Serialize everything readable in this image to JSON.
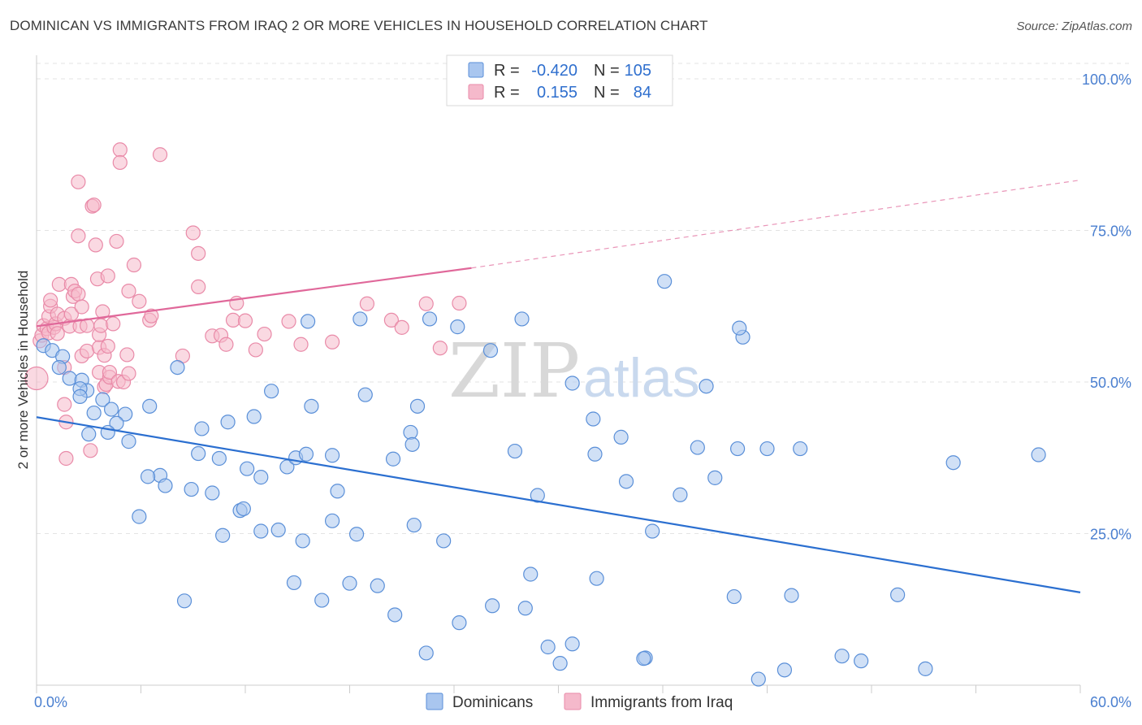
{
  "header": {
    "title": "DOMINICAN VS IMMIGRANTS FROM IRAQ 2 OR MORE VEHICLES IN HOUSEHOLD CORRELATION CHART",
    "source": "Source: ZipAtlas.com"
  },
  "watermark": {
    "zip": "ZIP",
    "atlas": "atlas"
  },
  "legend": {
    "r_label": "R =",
    "n_label": "N =",
    "rows": [
      {
        "r": "-0.420",
        "n": "105"
      },
      {
        "r": "0.155",
        "n": "84"
      }
    ]
  },
  "bottom_legend": [
    "Dominicans",
    "Immigrants from Iraq"
  ],
  "colors": {
    "blue_fill": "#a9c6ef",
    "blue_stroke": "#5a8fd8",
    "blue_line": "#2b6fd0",
    "pink_fill": "#f5b9cb",
    "pink_stroke": "#e98aa8",
    "pink_line": "#e0689a",
    "axis_text": "#4a7fd0"
  },
  "chart_data": {
    "type": "scatter",
    "xlabel": "",
    "ylabel": "2 or more Vehicles in Household",
    "xlim": [
      0,
      60
    ],
    "ylim": [
      0,
      100
    ],
    "x_tick_labels": [
      "0.0%",
      "60.0%"
    ],
    "y_ticks": [
      25,
      50,
      75,
      100
    ],
    "y_tick_labels": [
      "25.0%",
      "50.0%",
      "75.0%",
      "100.0%"
    ],
    "grid": true,
    "legend_position": "top-center",
    "series": [
      {
        "name": "Dominicans",
        "r": -0.42,
        "n": 105,
        "trend": {
          "x": [
            0,
            60
          ],
          "y": [
            44.2,
            15.3
          ]
        },
        "points": [
          [
            0.4,
            56.0
          ],
          [
            0.9,
            55.2
          ],
          [
            1.5,
            54.2
          ],
          [
            1.3,
            52.4
          ],
          [
            1.9,
            50.6
          ],
          [
            2.6,
            50.3
          ],
          [
            2.9,
            48.6
          ],
          [
            2.5,
            48.9
          ],
          [
            2.5,
            47.6
          ],
          [
            3.8,
            47.1
          ],
          [
            4.3,
            45.5
          ],
          [
            3.3,
            44.9
          ],
          [
            5.1,
            44.7
          ],
          [
            4.6,
            43.2
          ],
          [
            4.1,
            41.7
          ],
          [
            3.0,
            41.4
          ],
          [
            5.3,
            40.2
          ],
          [
            6.5,
            46.0
          ],
          [
            8.1,
            52.4
          ],
          [
            9.5,
            42.3
          ],
          [
            11.0,
            43.4
          ],
          [
            12.5,
            44.3
          ],
          [
            13.5,
            48.5
          ],
          [
            15.8,
            46.0
          ],
          [
            18.9,
            47.9
          ],
          [
            21.5,
            41.7
          ],
          [
            21.9,
            46.0
          ],
          [
            21.6,
            39.7
          ],
          [
            27.5,
            38.6
          ],
          [
            7.1,
            34.6
          ],
          [
            6.4,
            34.4
          ],
          [
            7.4,
            32.9
          ],
          [
            8.9,
            32.3
          ],
          [
            10.1,
            31.7
          ],
          [
            9.3,
            38.2
          ],
          [
            10.5,
            37.4
          ],
          [
            12.1,
            35.7
          ],
          [
            12.9,
            34.3
          ],
          [
            14.4,
            36.0
          ],
          [
            14.9,
            37.5
          ],
          [
            15.5,
            38.1
          ],
          [
            17.0,
            37.9
          ],
          [
            17.3,
            32.0
          ],
          [
            20.5,
            37.3
          ],
          [
            5.9,
            27.8
          ],
          [
            11.7,
            28.8
          ],
          [
            11.9,
            29.1
          ],
          [
            10.7,
            24.7
          ],
          [
            12.9,
            25.4
          ],
          [
            13.9,
            25.6
          ],
          [
            15.3,
            23.8
          ],
          [
            17.0,
            27.1
          ],
          [
            18.4,
            24.9
          ],
          [
            21.7,
            26.4
          ],
          [
            23.4,
            23.8
          ],
          [
            14.8,
            16.9
          ],
          [
            16.4,
            14.0
          ],
          [
            18.0,
            16.8
          ],
          [
            19.6,
            16.4
          ],
          [
            20.6,
            11.6
          ],
          [
            8.5,
            13.9
          ],
          [
            22.4,
            5.3
          ],
          [
            24.3,
            10.3
          ],
          [
            26.2,
            13.1
          ],
          [
            28.1,
            12.7
          ],
          [
            28.4,
            18.3
          ],
          [
            29.4,
            6.3
          ],
          [
            30.1,
            3.6
          ],
          [
            30.8,
            6.8
          ],
          [
            32.2,
            17.6
          ],
          [
            35.0,
            4.5
          ],
          [
            34.9,
            4.4
          ],
          [
            35.4,
            25.4
          ],
          [
            15.6,
            60.0
          ],
          [
            18.6,
            60.4
          ],
          [
            22.6,
            60.4
          ],
          [
            24.2,
            59.1
          ],
          [
            26.1,
            55.2
          ],
          [
            27.9,
            60.4
          ],
          [
            28.8,
            31.3
          ],
          [
            30.8,
            49.8
          ],
          [
            32.1,
            38.1
          ],
          [
            32.0,
            43.9
          ],
          [
            33.6,
            40.9
          ],
          [
            33.9,
            33.6
          ],
          [
            36.1,
            66.6
          ],
          [
            37.0,
            31.4
          ],
          [
            38.0,
            39.2
          ],
          [
            38.5,
            49.3
          ],
          [
            39.0,
            34.2
          ],
          [
            40.3,
            39.0
          ],
          [
            42.0,
            39.0
          ],
          [
            43.9,
            39.0
          ],
          [
            40.1,
            14.6
          ],
          [
            43.4,
            14.8
          ],
          [
            43.0,
            2.5
          ],
          [
            46.3,
            4.8
          ],
          [
            47.4,
            4.0
          ],
          [
            49.5,
            14.9
          ],
          [
            51.1,
            2.7
          ],
          [
            52.7,
            36.7
          ],
          [
            57.6,
            38.0
          ],
          [
            40.6,
            57.4
          ],
          [
            40.4,
            58.9
          ],
          [
            41.5,
            1.0
          ]
        ]
      },
      {
        "name": "Immigrants from Iraq",
        "r": 0.155,
        "n": 84,
        "trend": {
          "x": [
            0,
            25
          ],
          "y": [
            59.2,
            68.8
          ]
        },
        "trend_dashed": {
          "x": [
            25,
            60
          ],
          "y": [
            68.8,
            83.3
          ]
        },
        "points": [
          [
            0.0,
            50.6
          ],
          [
            0.2,
            56.8
          ],
          [
            0.3,
            57.7
          ],
          [
            0.4,
            59.3
          ],
          [
            0.6,
            58.8
          ],
          [
            0.7,
            58.1
          ],
          [
            0.7,
            60.8
          ],
          [
            0.8,
            62.5
          ],
          [
            0.8,
            63.5
          ],
          [
            1.0,
            59.0
          ],
          [
            1.1,
            59.6
          ],
          [
            1.2,
            61.2
          ],
          [
            1.2,
            58.0
          ],
          [
            1.3,
            66.1
          ],
          [
            1.6,
            60.5
          ],
          [
            1.6,
            52.4
          ],
          [
            1.6,
            46.3
          ],
          [
            1.7,
            43.4
          ],
          [
            1.7,
            37.4
          ],
          [
            1.9,
            59.2
          ],
          [
            2.0,
            61.2
          ],
          [
            2.0,
            66.1
          ],
          [
            2.1,
            64.1
          ],
          [
            2.2,
            65.0
          ],
          [
            2.4,
            64.5
          ],
          [
            2.4,
            74.1
          ],
          [
            2.4,
            83.0
          ],
          [
            2.5,
            59.2
          ],
          [
            2.6,
            62.4
          ],
          [
            2.6,
            54.3
          ],
          [
            2.9,
            55.1
          ],
          [
            2.9,
            59.3
          ],
          [
            3.1,
            38.7
          ],
          [
            3.2,
            79.0
          ],
          [
            3.3,
            79.2
          ],
          [
            3.4,
            72.6
          ],
          [
            3.5,
            67.0
          ],
          [
            3.6,
            51.6
          ],
          [
            3.6,
            55.7
          ],
          [
            3.6,
            57.8
          ],
          [
            3.7,
            59.3
          ],
          [
            3.8,
            61.6
          ],
          [
            3.9,
            49.2
          ],
          [
            3.9,
            54.4
          ],
          [
            4.0,
            49.6
          ],
          [
            4.1,
            67.5
          ],
          [
            4.1,
            55.9
          ],
          [
            4.2,
            50.8
          ],
          [
            4.2,
            51.6
          ],
          [
            4.4,
            59.6
          ],
          [
            4.6,
            73.2
          ],
          [
            4.7,
            50.1
          ],
          [
            4.8,
            88.3
          ],
          [
            4.8,
            86.2
          ],
          [
            5.0,
            50.0
          ],
          [
            5.2,
            54.5
          ],
          [
            5.3,
            51.4
          ],
          [
            5.3,
            65.0
          ],
          [
            5.6,
            69.3
          ],
          [
            5.9,
            63.3
          ],
          [
            6.5,
            60.2
          ],
          [
            6.6,
            60.9
          ],
          [
            7.1,
            87.5
          ],
          [
            8.4,
            54.3
          ],
          [
            9.0,
            74.6
          ],
          [
            9.3,
            71.2
          ],
          [
            9.3,
            65.7
          ],
          [
            10.1,
            57.6
          ],
          [
            10.6,
            57.7
          ],
          [
            10.9,
            56.2
          ],
          [
            11.3,
            60.2
          ],
          [
            11.5,
            63.0
          ],
          [
            12.0,
            60.1
          ],
          [
            12.6,
            55.3
          ],
          [
            13.1,
            57.9
          ],
          [
            14.5,
            60.0
          ],
          [
            15.2,
            56.2
          ],
          [
            17.0,
            56.6
          ],
          [
            19.0,
            62.9
          ],
          [
            20.4,
            60.2
          ],
          [
            21.0,
            59.0
          ],
          [
            22.4,
            62.9
          ],
          [
            23.2,
            55.6
          ],
          [
            24.3,
            63.0
          ]
        ]
      }
    ]
  }
}
